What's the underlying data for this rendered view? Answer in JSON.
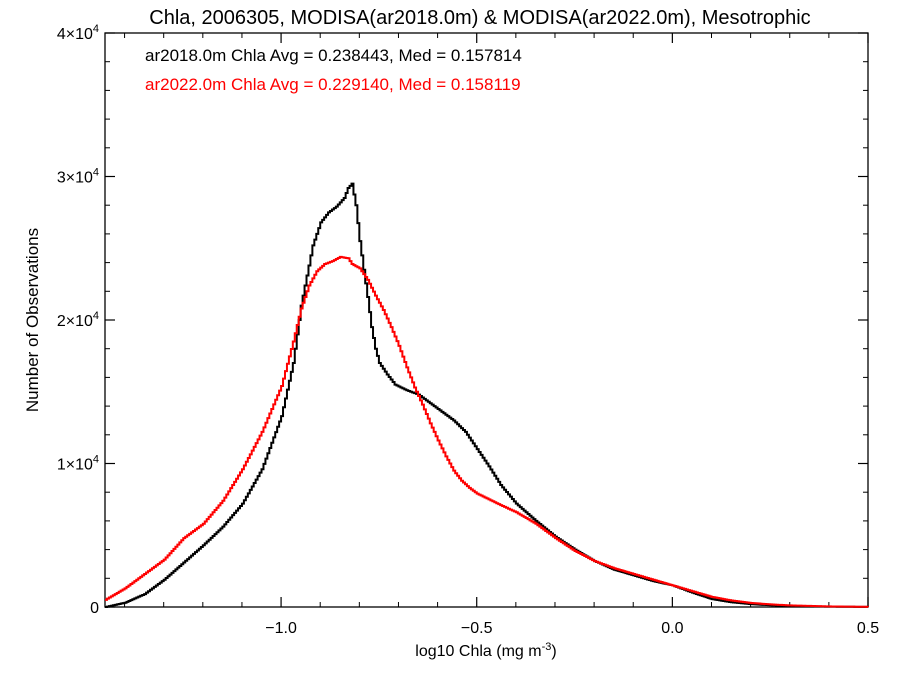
{
  "chart_data": {
    "type": "line",
    "title": "Chla, 2006305, MODISA(ar2018.0m) & MODISA(ar2022.0m), Mesotrophic",
    "xlabel": "log10 Chla (mg m",
    "xlabel_sup": "-3",
    "xlabel_close": ")",
    "ylabel": "Number of Observations",
    "xlim": [
      -1.45,
      0.5
    ],
    "ylim": [
      0,
      40000
    ],
    "x_ticks": [
      {
        "value": -1.0,
        "label": "−1.0"
      },
      {
        "value": -0.5,
        "label": "−0.5"
      },
      {
        "value": 0.0,
        "label": "0.0"
      },
      {
        "value": 0.5,
        "label": "0.5"
      }
    ],
    "y_ticks": [
      {
        "value": 0,
        "label": "0",
        "sup": ""
      },
      {
        "value": 10000,
        "label": "1×10",
        "sup": "4"
      },
      {
        "value": 20000,
        "label": "2×10",
        "sup": "4"
      },
      {
        "value": 30000,
        "label": "3×10",
        "sup": "4"
      },
      {
        "value": 40000,
        "label": "4×10",
        "sup": "4"
      }
    ],
    "grid": false,
    "legend_position": "top-left",
    "series": [
      {
        "name": "ar2018.0m Chla Avg = 0.238443, Med = 0.157814",
        "color": "#000000",
        "points": [
          [
            -1.45,
            0
          ],
          [
            -1.4,
            300
          ],
          [
            -1.35,
            900
          ],
          [
            -1.3,
            1900
          ],
          [
            -1.25,
            3100
          ],
          [
            -1.2,
            4300
          ],
          [
            -1.15,
            5600
          ],
          [
            -1.1,
            7200
          ],
          [
            -1.05,
            9600
          ],
          [
            -1.0,
            13300
          ],
          [
            -0.97,
            17000
          ],
          [
            -0.95,
            21000
          ],
          [
            -0.92,
            25200
          ],
          [
            -0.9,
            26800
          ],
          [
            -0.88,
            27500
          ],
          [
            -0.86,
            27900
          ],
          [
            -0.84,
            28500
          ],
          [
            -0.83,
            29200
          ],
          [
            -0.82,
            29500
          ],
          [
            -0.81,
            28000
          ],
          [
            -0.8,
            25500
          ],
          [
            -0.79,
            23500
          ],
          [
            -0.78,
            21600
          ],
          [
            -0.77,
            19500
          ],
          [
            -0.76,
            18000
          ],
          [
            -0.75,
            17000
          ],
          [
            -0.73,
            16200
          ],
          [
            -0.71,
            15500
          ],
          [
            -0.68,
            15100
          ],
          [
            -0.65,
            14800
          ],
          [
            -0.62,
            14200
          ],
          [
            -0.59,
            13600
          ],
          [
            -0.56,
            13000
          ],
          [
            -0.53,
            12200
          ],
          [
            -0.5,
            11000
          ],
          [
            -0.47,
            9800
          ],
          [
            -0.44,
            8500
          ],
          [
            -0.4,
            7200
          ],
          [
            -0.35,
            6000
          ],
          [
            -0.3,
            4900
          ],
          [
            -0.25,
            4000
          ],
          [
            -0.2,
            3200
          ],
          [
            -0.15,
            2600
          ],
          [
            -0.1,
            2200
          ],
          [
            -0.05,
            1800
          ],
          [
            0.0,
            1500
          ],
          [
            0.05,
            1000
          ],
          [
            0.1,
            550
          ],
          [
            0.15,
            330
          ],
          [
            0.2,
            200
          ],
          [
            0.25,
            120
          ],
          [
            0.3,
            70
          ],
          [
            0.4,
            25
          ],
          [
            0.5,
            5
          ]
        ]
      },
      {
        "name": "ar2022.0m Chla Avg = 0.229140, Med = 0.158119",
        "color": "#ff0000",
        "points": [
          [
            -1.45,
            500
          ],
          [
            -1.4,
            1300
          ],
          [
            -1.35,
            2300
          ],
          [
            -1.3,
            3300
          ],
          [
            -1.25,
            4800
          ],
          [
            -1.2,
            5800
          ],
          [
            -1.15,
            7400
          ],
          [
            -1.1,
            9600
          ],
          [
            -1.05,
            12200
          ],
          [
            -1.0,
            15400
          ],
          [
            -0.97,
            18500
          ],
          [
            -0.95,
            20800
          ],
          [
            -0.93,
            22400
          ],
          [
            -0.91,
            23400
          ],
          [
            -0.89,
            23900
          ],
          [
            -0.87,
            24100
          ],
          [
            -0.85,
            24400
          ],
          [
            -0.83,
            24300
          ],
          [
            -0.82,
            23900
          ],
          [
            -0.8,
            23600
          ],
          [
            -0.78,
            22800
          ],
          [
            -0.76,
            21700
          ],
          [
            -0.74,
            20700
          ],
          [
            -0.72,
            19500
          ],
          [
            -0.7,
            18200
          ],
          [
            -0.68,
            16700
          ],
          [
            -0.66,
            15300
          ],
          [
            -0.64,
            14100
          ],
          [
            -0.62,
            12800
          ],
          [
            -0.6,
            11600
          ],
          [
            -0.58,
            10500
          ],
          [
            -0.56,
            9500
          ],
          [
            -0.54,
            8800
          ],
          [
            -0.52,
            8300
          ],
          [
            -0.5,
            7900
          ],
          [
            -0.47,
            7500
          ],
          [
            -0.44,
            7100
          ],
          [
            -0.4,
            6600
          ],
          [
            -0.35,
            5800
          ],
          [
            -0.3,
            4800
          ],
          [
            -0.25,
            3900
          ],
          [
            -0.2,
            3200
          ],
          [
            -0.15,
            2700
          ],
          [
            -0.1,
            2300
          ],
          [
            -0.05,
            1900
          ],
          [
            0.0,
            1500
          ],
          [
            0.05,
            1100
          ],
          [
            0.1,
            700
          ],
          [
            0.15,
            450
          ],
          [
            0.2,
            280
          ],
          [
            0.25,
            180
          ],
          [
            0.3,
            110
          ],
          [
            0.4,
            40
          ],
          [
            0.5,
            10
          ]
        ]
      }
    ]
  }
}
